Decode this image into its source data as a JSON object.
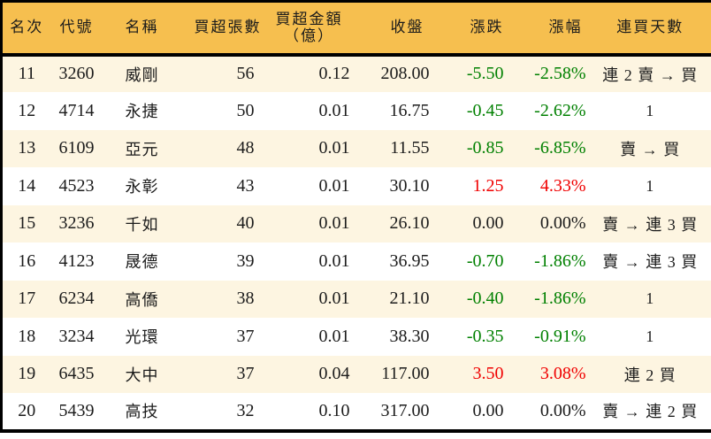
{
  "table": {
    "columns": [
      {
        "key": "rank",
        "label": "名次"
      },
      {
        "key": "code",
        "label": "代號"
      },
      {
        "key": "name",
        "label": "名稱"
      },
      {
        "key": "volume",
        "label": "買超張數"
      },
      {
        "key": "amount",
        "label": "買超金額",
        "label2": "（億）"
      },
      {
        "key": "close",
        "label": "收盤"
      },
      {
        "key": "change",
        "label": "漲跌"
      },
      {
        "key": "change_pct",
        "label": "漲幅"
      },
      {
        "key": "streak",
        "label": "連買天數"
      }
    ],
    "rows": [
      {
        "rank": "11",
        "code": "3260",
        "name": "威剛",
        "volume": "56",
        "amount": "0.12",
        "close": "208.00",
        "change": "-5.50",
        "change_pct": "-2.58%",
        "streak": "連 2 賣 → 買",
        "trend": "down"
      },
      {
        "rank": "12",
        "code": "4714",
        "name": "永捷",
        "volume": "50",
        "amount": "0.01",
        "close": "16.75",
        "change": "-0.45",
        "change_pct": "-2.62%",
        "streak": "1",
        "trend": "down"
      },
      {
        "rank": "13",
        "code": "6109",
        "name": "亞元",
        "volume": "48",
        "amount": "0.01",
        "close": "11.55",
        "change": "-0.85",
        "change_pct": "-6.85%",
        "streak": "賣 → 買",
        "trend": "down"
      },
      {
        "rank": "14",
        "code": "4523",
        "name": "永彰",
        "volume": "43",
        "amount": "0.01",
        "close": "30.10",
        "change": "1.25",
        "change_pct": "4.33%",
        "streak": "1",
        "trend": "up"
      },
      {
        "rank": "15",
        "code": "3236",
        "name": "千如",
        "volume": "40",
        "amount": "0.01",
        "close": "26.10",
        "change": "0.00",
        "change_pct": "0.00%",
        "streak": "賣 → 連 3 買",
        "trend": "flat"
      },
      {
        "rank": "16",
        "code": "4123",
        "name": "晟德",
        "volume": "39",
        "amount": "0.01",
        "close": "36.95",
        "change": "-0.70",
        "change_pct": "-1.86%",
        "streak": "賣 → 連 3 買",
        "trend": "down"
      },
      {
        "rank": "17",
        "code": "6234",
        "name": "高僑",
        "volume": "38",
        "amount": "0.01",
        "close": "21.10",
        "change": "-0.40",
        "change_pct": "-1.86%",
        "streak": "1",
        "trend": "down"
      },
      {
        "rank": "18",
        "code": "3234",
        "name": "光環",
        "volume": "37",
        "amount": "0.01",
        "close": "38.30",
        "change": "-0.35",
        "change_pct": "-0.91%",
        "streak": "1",
        "trend": "down"
      },
      {
        "rank": "19",
        "code": "6435",
        "name": "大中",
        "volume": "37",
        "amount": "0.04",
        "close": "117.00",
        "change": "3.50",
        "change_pct": "3.08%",
        "streak": "連 2 買",
        "trend": "up"
      },
      {
        "rank": "20",
        "code": "5439",
        "name": "高技",
        "volume": "32",
        "amount": "0.10",
        "close": "317.00",
        "change": "0.00",
        "change_pct": "0.00%",
        "streak": "賣 → 連 2 買",
        "trend": "flat"
      }
    ]
  },
  "colors": {
    "header_bg": "#f6bf4f",
    "row_alt_bg": "#fdf5e1",
    "row_bg": "#ffffff",
    "border": "#000000",
    "text": "#1b1b1b",
    "up": "#f00000",
    "down": "#008000",
    "flat": "#1b1b1b"
  }
}
